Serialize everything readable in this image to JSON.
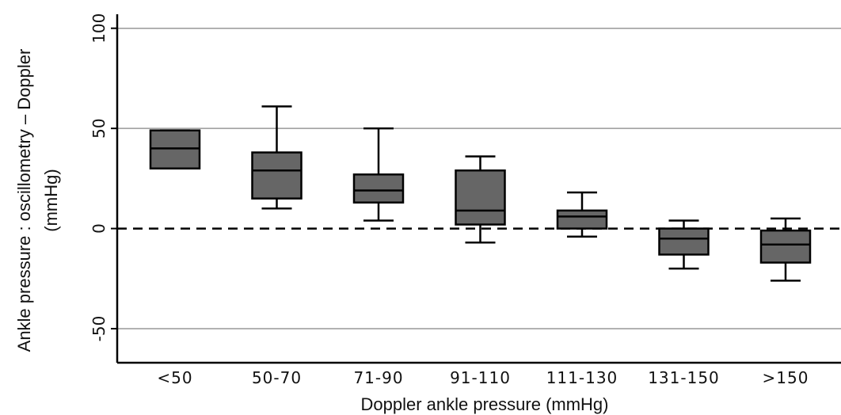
{
  "chart_data": {
    "type": "box",
    "xlabel": "Doppler ankle pressure (mmHg)",
    "ylabel_line1": "Ankle pressure : oscillometry – Doppler",
    "ylabel_line2": "(mmHg)",
    "ylim": [
      -67,
      107
    ],
    "yticks": [
      -50,
      0,
      50,
      100
    ],
    "grid": true,
    "reference_line": {
      "y": 0,
      "style": "dashed"
    },
    "categories": [
      "<50",
      "50-70",
      "71-90",
      "91-110",
      "111-130",
      "131-150",
      ">150"
    ],
    "boxes": [
      {
        "category": "<50",
        "whisker_low": 30,
        "q1": 30,
        "median": 40,
        "q3": 49,
        "whisker_high": 49
      },
      {
        "category": "50-70",
        "whisker_low": 10,
        "q1": 15,
        "median": 29,
        "q3": 38,
        "whisker_high": 61
      },
      {
        "category": "71-90",
        "whisker_low": 4,
        "q1": 13,
        "median": 19,
        "q3": 27,
        "whisker_high": 50
      },
      {
        "category": "91-110",
        "whisker_low": -7,
        "q1": 2,
        "median": 9,
        "q3": 29,
        "whisker_high": 36
      },
      {
        "category": "111-130",
        "whisker_low": -4,
        "q1": 0,
        "median": 6,
        "q3": 9,
        "whisker_high": 18
      },
      {
        "category": "131-150",
        "whisker_low": -20,
        "q1": -13,
        "median": -5,
        "q3": 0,
        "whisker_high": 4
      },
      {
        "category": ">150",
        "whisker_low": -26,
        "q1": -17,
        "median": -8,
        "q3": -1,
        "whisker_high": 5
      }
    ],
    "colors": {
      "box_fill": "#666666",
      "box_stroke": "#000000",
      "grid": "#999999"
    }
  }
}
